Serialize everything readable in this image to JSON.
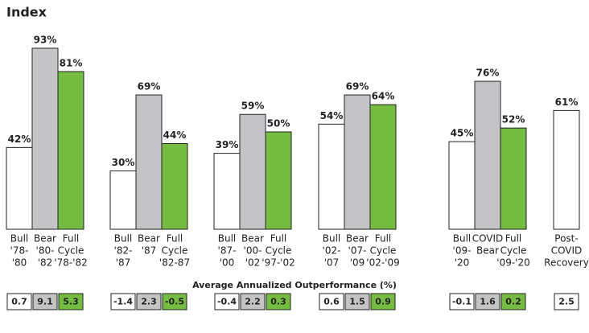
{
  "chart_data": {
    "type": "bar",
    "title": "Index",
    "subtitle": "Average Annualized Outperformance (%)",
    "ylim": [
      0,
      100
    ],
    "groups": [
      {
        "categories": [
          [
            "Bull",
            "'78-",
            "'80"
          ],
          [
            "Bear",
            "'80-",
            "'82"
          ],
          [
            "Full",
            "Cycle",
            "'78-'82"
          ]
        ],
        "values": [
          42,
          93,
          81
        ],
        "value_labels": [
          "42%",
          "93%",
          "81%"
        ],
        "outperformance": [
          0.7,
          9.1,
          5.3
        ],
        "colors": [
          "#ffffff",
          "#c4c4c6",
          "#76bc43"
        ]
      },
      {
        "categories": [
          [
            "Bull",
            "'82-",
            "'87"
          ],
          [
            "Bear",
            "'87"
          ],
          [
            "Full",
            "Cycle",
            "'82-87"
          ]
        ],
        "values": [
          30,
          69,
          44
        ],
        "value_labels": [
          "30%",
          "69%",
          "44%"
        ],
        "outperformance": [
          -1.4,
          2.3,
          -0.5
        ],
        "colors": [
          "#ffffff",
          "#c4c4c6",
          "#76bc43"
        ]
      },
      {
        "categories": [
          [
            "Bull",
            "'87-",
            "'00"
          ],
          [
            "Bear",
            "'00-",
            "'02"
          ],
          [
            "Full",
            "Cycle",
            "'97-'02"
          ]
        ],
        "values": [
          39,
          59,
          50
        ],
        "value_labels": [
          "39%",
          "59%",
          "50%"
        ],
        "outperformance": [
          -0.4,
          2.2,
          0.3
        ],
        "colors": [
          "#ffffff",
          "#c4c4c6",
          "#76bc43"
        ]
      },
      {
        "categories": [
          [
            "Bull",
            "'02-",
            "'07"
          ],
          [
            "Bear",
            "'07-",
            "'09"
          ],
          [
            "Full",
            "Cycle",
            "'02-'09"
          ]
        ],
        "values": [
          54,
          69,
          64
        ],
        "value_labels": [
          "54%",
          "69%",
          "64%"
        ],
        "outperformance": [
          0.6,
          1.5,
          0.9
        ],
        "colors": [
          "#ffffff",
          "#c4c4c6",
          "#76bc43"
        ]
      },
      {
        "categories": [
          [
            "Bull",
            "'09-",
            "'20"
          ],
          [
            "COVID",
            "Bear"
          ],
          [
            "Full",
            "Cycle",
            "'09-'20"
          ]
        ],
        "values": [
          45,
          76,
          52
        ],
        "value_labels": [
          "45%",
          "76%",
          "52%"
        ],
        "outperformance": [
          -0.1,
          1.6,
          0.2
        ],
        "colors": [
          "#ffffff",
          "#c4c4c6",
          "#76bc43"
        ]
      },
      {
        "categories": [
          [
            "Post-",
            "COVID",
            "Recovery"
          ]
        ],
        "values": [
          61
        ],
        "value_labels": [
          "61%"
        ],
        "outperformance": [
          2.5
        ],
        "colors": [
          "#ffffff"
        ]
      }
    ]
  }
}
